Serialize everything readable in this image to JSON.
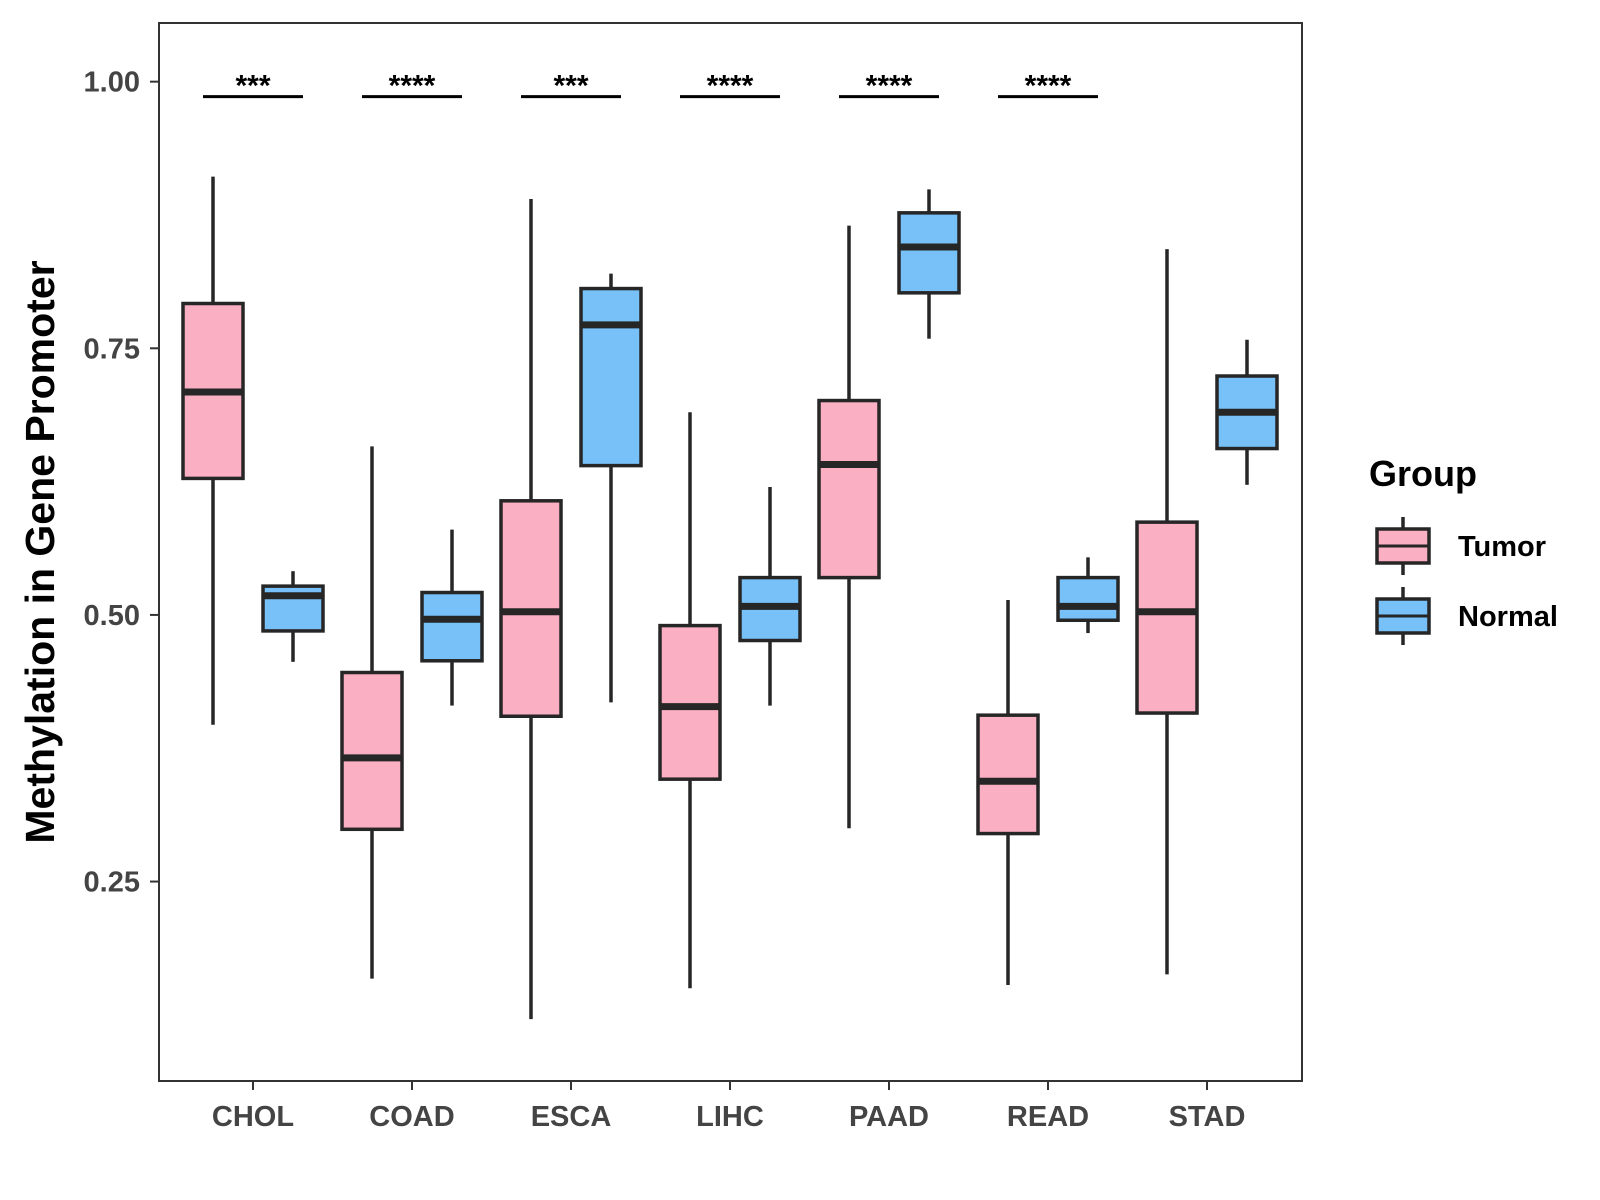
{
  "chart_data": {
    "type": "boxplot",
    "ylabel": "Methylation in Gene Promoter",
    "xlabel": "",
    "ylim": [
      0.063,
      1.055
    ],
    "yticks": [
      0.25,
      0.5,
      0.75,
      1.0
    ],
    "ytick_labels": [
      "0.25",
      "0.50",
      "0.75",
      "1.00"
    ],
    "categories": [
      "CHOL",
      "COAD",
      "ESCA",
      "LIHC",
      "PAAD",
      "READ",
      "STAD"
    ],
    "legend": {
      "title": "Group",
      "position": "right",
      "entries": [
        {
          "name": "Tumor",
          "color": "#FBAFC3"
        },
        {
          "name": "Normal",
          "color": "#77C0F8"
        }
      ]
    },
    "series": [
      {
        "name": "Tumor",
        "color": "#FBAFC3",
        "boxes": [
          {
            "category": "CHOL",
            "min": 0.397,
            "q1": 0.628,
            "median": 0.709,
            "q3": 0.792,
            "max": 0.911
          },
          {
            "category": "COAD",
            "min": 0.159,
            "q1": 0.299,
            "median": 0.366,
            "q3": 0.446,
            "max": 0.658
          },
          {
            "category": "ESCA",
            "min": 0.121,
            "q1": 0.405,
            "median": 0.503,
            "q3": 0.607,
            "max": 0.89
          },
          {
            "category": "LIHC",
            "min": 0.15,
            "q1": 0.346,
            "median": 0.414,
            "q3": 0.49,
            "max": 0.69
          },
          {
            "category": "PAAD",
            "min": 0.3,
            "q1": 0.535,
            "median": 0.641,
            "q3": 0.701,
            "max": 0.865
          },
          {
            "category": "READ",
            "min": 0.153,
            "q1": 0.295,
            "median": 0.344,
            "q3": 0.406,
            "max": 0.514
          },
          {
            "category": "STAD",
            "min": 0.163,
            "q1": 0.408,
            "median": 0.503,
            "q3": 0.587,
            "max": 0.843
          }
        ]
      },
      {
        "name": "Normal",
        "color": "#77C0F8",
        "boxes": [
          {
            "category": "CHOL",
            "min": 0.456,
            "q1": 0.485,
            "median": 0.518,
            "q3": 0.527,
            "max": 0.541
          },
          {
            "category": "COAD",
            "min": 0.415,
            "q1": 0.457,
            "median": 0.496,
            "q3": 0.521,
            "max": 0.58
          },
          {
            "category": "ESCA",
            "min": 0.418,
            "q1": 0.64,
            "median": 0.772,
            "q3": 0.806,
            "max": 0.82
          },
          {
            "category": "LIHC",
            "min": 0.415,
            "q1": 0.476,
            "median": 0.508,
            "q3": 0.535,
            "max": 0.62
          },
          {
            "category": "PAAD",
            "min": 0.759,
            "q1": 0.802,
            "median": 0.845,
            "q3": 0.877,
            "max": 0.899
          },
          {
            "category": "READ",
            "min": 0.483,
            "q1": 0.495,
            "median": 0.508,
            "q3": 0.535,
            "max": 0.554
          },
          {
            "category": "STAD",
            "min": 0.622,
            "q1": 0.656,
            "median": 0.69,
            "q3": 0.724,
            "max": 0.758
          }
        ]
      }
    ],
    "significance": [
      {
        "category": "CHOL",
        "label": "***",
        "y": 0.986
      },
      {
        "category": "COAD",
        "label": "****",
        "y": 0.986
      },
      {
        "category": "ESCA",
        "label": "***",
        "y": 0.986
      },
      {
        "category": "LIHC",
        "label": "****",
        "y": 0.986
      },
      {
        "category": "PAAD",
        "label": "****",
        "y": 0.986
      },
      {
        "category": "READ",
        "label": "****",
        "y": 0.986
      }
    ]
  }
}
